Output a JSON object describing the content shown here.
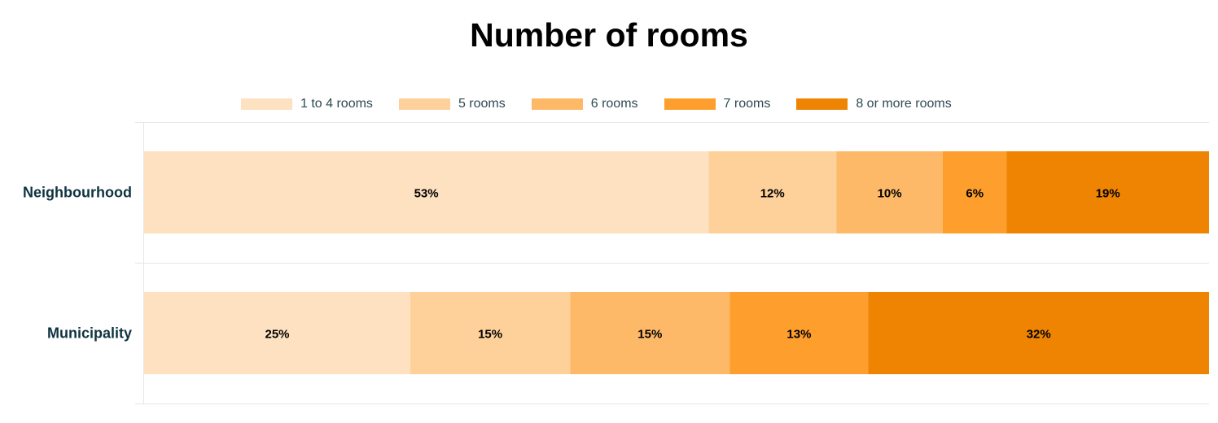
{
  "chart_data": {
    "type": "bar",
    "orientation": "horizontal",
    "stacked": true,
    "title": "Number of rooms",
    "categories": [
      "Neighbourhood",
      "Municipality"
    ],
    "series": [
      {
        "name": "1 to 4 rooms",
        "color": "#fde1c0",
        "values": [
          53,
          25
        ],
        "labels": [
          "53%",
          "25%"
        ]
      },
      {
        "name": "5 rooms",
        "color": "#fed19b",
        "values": [
          12,
          15
        ],
        "labels": [
          "12%",
          "15%"
        ]
      },
      {
        "name": "6 rooms",
        "color": "#feb968",
        "values": [
          10,
          15
        ],
        "labels": [
          "10%",
          "15%"
        ]
      },
      {
        "name": "7 rooms",
        "color": "#fe9e2c",
        "values": [
          6,
          13
        ],
        "labels": [
          "6%",
          "13%"
        ]
      },
      {
        "name": "8 or more rooms",
        "color": "#ee8402",
        "values": [
          19,
          32
        ],
        "labels": [
          "19%",
          "32%"
        ]
      }
    ],
    "xlim": [
      0,
      100
    ],
    "unit": "%",
    "legend_position": "top",
    "grid": true
  }
}
